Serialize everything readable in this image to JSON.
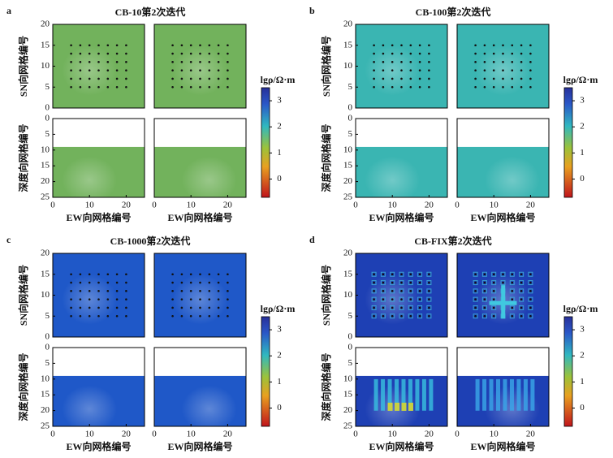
{
  "axes": {
    "xlabel": "EW向网格编号",
    "plan_ylabel": "SN向网格编号",
    "depth_ylabel": "深度向网格编号",
    "xlim": [
      0,
      25
    ],
    "xticks": [
      0,
      10,
      20
    ],
    "plan_ylim": [
      0,
      20
    ],
    "plan_yticks": [
      0,
      5,
      10,
      15,
      20
    ],
    "depth_ylim": [
      0,
      25
    ],
    "depth_yticks": [
      0,
      5,
      10,
      15,
      20,
      25
    ],
    "colorbar_label": "lgρ/Ω·m",
    "colorbar_lim": [
      -0.7,
      3.5
    ],
    "colorbar_ticks": [
      0,
      1,
      2,
      3
    ]
  },
  "chart_data": [
    {
      "type": "heatmap",
      "label": "a",
      "title": "CB-10第2次迭代",
      "color": "#72b25c"
    },
    {
      "type": "heatmap",
      "label": "b",
      "title": "CB-100第2次迭代",
      "color": "#3ab5b2"
    },
    {
      "type": "heatmap",
      "label": "c",
      "title": "CB-1000第2次迭代",
      "color": "#1f58c8"
    },
    {
      "type": "heatmap",
      "label": "d",
      "title": "CB-FIX第2次迭代",
      "color": "#1e40b4"
    }
  ]
}
